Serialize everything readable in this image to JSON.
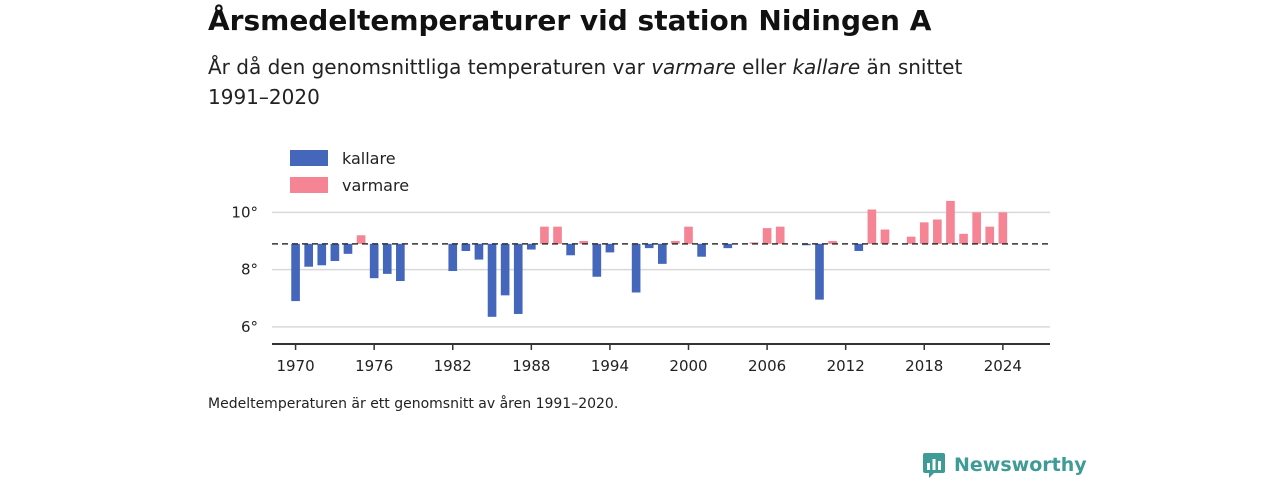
{
  "title": "Årsmedeltemperaturer vid station Nidingen A",
  "subtitle": {
    "part1": "År då den genomsnittliga temperaturen var ",
    "warmer": "varmare",
    "part2": " eller ",
    "colder": "kallare",
    "part3": " än snittet 1991–2020"
  },
  "footnote": "Medeltemperaturen är ett genomsnitt av åren 1991–2020.",
  "brand": "Newsworthy",
  "colors": {
    "colder": "#4466bb",
    "warmer": "#f58595",
    "brand": "#3e9b95"
  },
  "chart_data": {
    "type": "bar",
    "baseline": 8.9,
    "ylim": [
      5.4,
      11.2
    ],
    "yticks": [
      6,
      8,
      10
    ],
    "ytick_labels": [
      "6°",
      "8°",
      "10°"
    ],
    "xticks": [
      1970,
      1976,
      1982,
      1988,
      1994,
      2000,
      2006,
      2012,
      2018,
      2024
    ],
    "grid": true,
    "legend_position": "top-left",
    "series": [
      {
        "name": "kallare"
      },
      {
        "name": "varmare"
      }
    ],
    "x": [
      1970,
      1971,
      1972,
      1973,
      1974,
      1975,
      1976,
      1977,
      1978,
      1979,
      1980,
      1981,
      1982,
      1983,
      1984,
      1985,
      1986,
      1987,
      1988,
      1989,
      1990,
      1991,
      1992,
      1993,
      1994,
      1995,
      1996,
      1997,
      1998,
      1999,
      2000,
      2001,
      2002,
      2003,
      2004,
      2005,
      2006,
      2007,
      2008,
      2009,
      2010,
      2011,
      2012,
      2013,
      2014,
      2015,
      2016,
      2017,
      2018,
      2019,
      2020,
      2021,
      2022,
      2023,
      2024
    ],
    "values": [
      6.9,
      8.1,
      8.15,
      8.3,
      8.55,
      9.2,
      7.7,
      7.85,
      7.6,
      null,
      null,
      null,
      7.95,
      8.65,
      8.35,
      6.35,
      7.1,
      6.45,
      8.7,
      9.5,
      9.5,
      8.5,
      9.0,
      7.75,
      8.6,
      null,
      7.2,
      8.75,
      8.2,
      9.0,
      9.5,
      8.45,
      null,
      8.75,
      null,
      8.95,
      9.45,
      9.5,
      null,
      8.85,
      6.95,
      9.0,
      null,
      8.65,
      10.1,
      9.4,
      null,
      9.15,
      9.65,
      9.75,
      10.4,
      9.25,
      10.0,
      9.5,
      10.0
    ]
  }
}
